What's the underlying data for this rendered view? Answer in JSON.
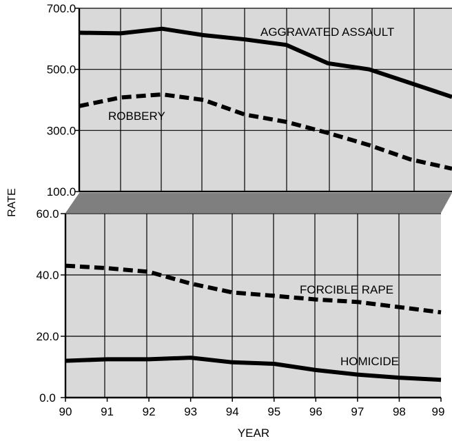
{
  "axis_labels": {
    "y": "RATE",
    "x": "YEAR"
  },
  "colors": {
    "panel_fill": "#d9d9d9",
    "grid": "#000000",
    "line": "#000000",
    "break_band": "#7f7f7f"
  },
  "chart_data": [
    {
      "type": "line",
      "ylim": [
        100,
        700
      ],
      "yticks": [
        "100.0",
        "300.0",
        "500.0",
        "700.0"
      ],
      "grid": true,
      "series": [
        {
          "name": "AGGRAVATED ASSAULT",
          "style": "solid",
          "x": [
            90,
            91,
            92,
            93,
            94,
            95,
            96,
            97,
            98,
            99
          ],
          "values": [
            620,
            618,
            633,
            612,
            598,
            580,
            520,
            500,
            455,
            410
          ]
        },
        {
          "name": "ROBBERY",
          "style": "dashed",
          "x": [
            90,
            91,
            92,
            93,
            94,
            95,
            96,
            97,
            98,
            99
          ],
          "values": [
            380,
            408,
            418,
            400,
            352,
            328,
            292,
            252,
            205,
            175
          ]
        }
      ]
    },
    {
      "type": "line",
      "ylim": [
        0,
        60
      ],
      "yticks": [
        "0.0",
        "20.0",
        "40.0",
        "60.0"
      ],
      "xticks": [
        "90",
        "91",
        "92",
        "93",
        "94",
        "95",
        "96",
        "97",
        "98",
        "99"
      ],
      "grid": true,
      "series": [
        {
          "name": "FORCIBLE RAPE",
          "style": "dashed",
          "x": [
            90,
            91,
            92,
            93,
            94,
            95,
            96,
            97,
            98,
            99
          ],
          "values": [
            43.0,
            42.2,
            41.0,
            37.2,
            34.3,
            33.2,
            32.0,
            31.2,
            29.5,
            27.8
          ]
        },
        {
          "name": "HOMICIDE",
          "style": "solid",
          "x": [
            90,
            91,
            92,
            93,
            94,
            95,
            96,
            97,
            98,
            99
          ],
          "values": [
            12.0,
            12.5,
            12.5,
            13.0,
            11.5,
            11.0,
            9.0,
            7.5,
            6.5,
            5.8
          ]
        }
      ]
    }
  ]
}
